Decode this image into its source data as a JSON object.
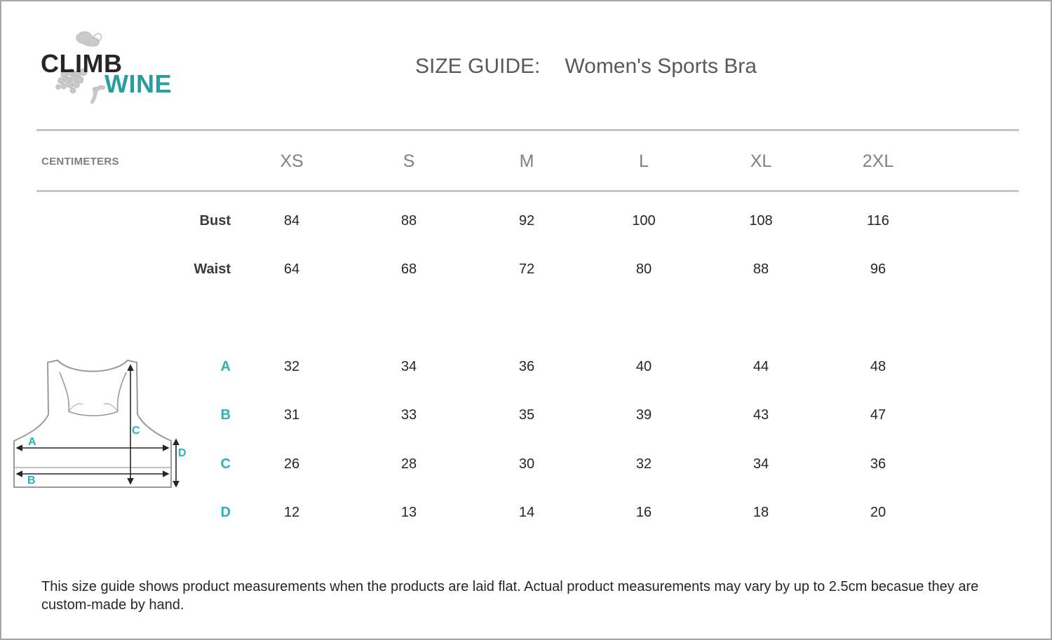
{
  "logo": {
    "line1": "CLIMB",
    "line2": "WINE"
  },
  "title": {
    "prefix": "SIZE GUIDE:",
    "product": "Women's Sports Bra"
  },
  "table": {
    "units_label": "CENTIMETERS",
    "sizes": [
      "XS",
      "S",
      "M",
      "L",
      "XL",
      "2XL"
    ],
    "rows": [
      {
        "label": "Bust",
        "style": "dark",
        "values": [
          "84",
          "88",
          "92",
          "100",
          "108",
          "116"
        ]
      },
      {
        "label": "Waist",
        "style": "dark",
        "values": [
          "64",
          "68",
          "72",
          "80",
          "88",
          "96"
        ]
      },
      {
        "label": "A",
        "style": "teal",
        "values": [
          "32",
          "34",
          "36",
          "40",
          "44",
          "48"
        ]
      },
      {
        "label": "B",
        "style": "teal",
        "values": [
          "31",
          "33",
          "35",
          "39",
          "43",
          "47"
        ]
      },
      {
        "label": "C",
        "style": "teal",
        "values": [
          "26",
          "28",
          "30",
          "32",
          "34",
          "36"
        ]
      },
      {
        "label": "D",
        "style": "teal",
        "values": [
          "12",
          "13",
          "14",
          "16",
          "18",
          "20"
        ]
      }
    ]
  },
  "diagram": {
    "labels": {
      "a": "A",
      "b": "B",
      "c": "C",
      "d": "D"
    }
  },
  "footnote": "This size guide shows product measurements when the products are laid flat. Actual product measurements may vary by up to 2.5cm becasue they are custom-made by hand.",
  "colors": {
    "teal": "#2ab3b7",
    "logo_teal": "#2a9d9f",
    "rule": "#c6c6c6",
    "border": "#a6a6a6"
  }
}
